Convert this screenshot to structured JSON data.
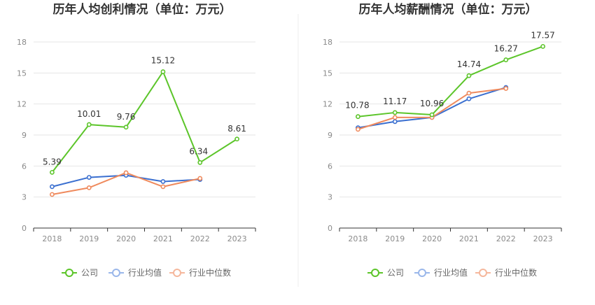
{
  "chart_data": [
    {
      "type": "line",
      "title": "历年人均创利情况（单位：万元）",
      "categories": [
        "2018",
        "2019",
        "2020",
        "2021",
        "2022",
        "2023"
      ],
      "ylim": [
        0,
        18
      ],
      "yticks": [
        0,
        3,
        6,
        9,
        12,
        15,
        18
      ],
      "grid": true,
      "legend": "bottom",
      "series": [
        {
          "name": "公司",
          "color": "#5cc52a",
          "values": [
            5.39,
            10.01,
            9.76,
            15.12,
            6.34,
            8.61
          ],
          "labels": [
            "5.39",
            "10.01",
            "9.76",
            "15.12",
            "6.34",
            "8.61"
          ]
        },
        {
          "name": "行业均值",
          "color": "#3a6fd0",
          "values": [
            4.0,
            4.9,
            5.1,
            4.5,
            4.7,
            null
          ]
        },
        {
          "name": "行业中位数",
          "color": "#ef8a5d",
          "values": [
            3.25,
            3.9,
            5.35,
            4.0,
            4.8,
            null
          ]
        }
      ]
    },
    {
      "type": "line",
      "title": "历年人均薪酬情况（单位：万元）",
      "categories": [
        "2018",
        "2019",
        "2020",
        "2021",
        "2022",
        "2023"
      ],
      "ylim": [
        0,
        18
      ],
      "yticks": [
        0,
        3,
        6,
        9,
        12,
        15,
        18
      ],
      "grid": true,
      "legend": "bottom",
      "series": [
        {
          "name": "公司",
          "color": "#5cc52a",
          "values": [
            10.78,
            11.17,
            10.96,
            14.74,
            16.27,
            17.57
          ],
          "labels": [
            "10.78",
            "11.17",
            "10.96",
            "14.74",
            "16.27",
            "17.57"
          ]
        },
        {
          "name": "行业均值",
          "color": "#3a6fd0",
          "values": [
            9.7,
            10.3,
            10.7,
            12.5,
            13.6,
            null
          ]
        },
        {
          "name": "行业中位数",
          "color": "#ef8a5d",
          "values": [
            9.55,
            10.7,
            10.7,
            13.05,
            13.5,
            null
          ]
        }
      ]
    }
  ]
}
